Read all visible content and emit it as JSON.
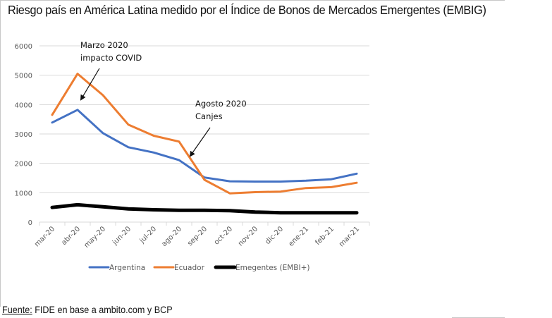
{
  "title": "Riesgo país en América Latina medido por el Índice de Bonos de Mercados Emergentes (EMBIG)",
  "source": {
    "label": "Fuente:",
    "text": " FIDE en base a ambito.com y BCP"
  },
  "chart_data": {
    "type": "line",
    "title": "Riesgo país en América Latina medido por el Índice de Bonos de Mercados Emergentes (EMBIG)",
    "xlabel": "",
    "ylabel": "",
    "ylim": [
      0,
      6000
    ],
    "yticks": [
      0,
      1000,
      2000,
      3000,
      4000,
      5000,
      6000
    ],
    "grid": true,
    "legend_position": "bottom",
    "categories": [
      "mar-20",
      "abr-20",
      "may-20",
      "jun-20",
      "jul-20",
      "ago-20",
      "sep-20",
      "oct-20",
      "nov-20",
      "dic-20",
      "ene-21",
      "feb-21",
      "mar-21"
    ],
    "series": [
      {
        "name": "Argentina",
        "color": "#4472C4",
        "values": [
          3390,
          3820,
          3030,
          2550,
          2370,
          2110,
          1520,
          1390,
          1380,
          1380,
          1410,
          1460,
          1650
        ]
      },
      {
        "name": "Ecuador",
        "color": "#ED7D31",
        "values": [
          3650,
          5050,
          4320,
          3320,
          2940,
          2740,
          1440,
          980,
          1020,
          1040,
          1160,
          1190,
          1340
        ]
      },
      {
        "name": "Emegentes (EMBI+)",
        "color": "#000000",
        "values": [
          500,
          590,
          520,
          450,
          420,
          400,
          400,
          390,
          340,
          320,
          320,
          320,
          320
        ]
      }
    ],
    "annotations": [
      {
        "lines": [
          "Marzo 2020",
          "impacto COVID"
        ],
        "points_to": "abr-20"
      },
      {
        "lines": [
          "Agosto 2020",
          "Canjes"
        ],
        "points_to": "ago-20"
      }
    ]
  }
}
